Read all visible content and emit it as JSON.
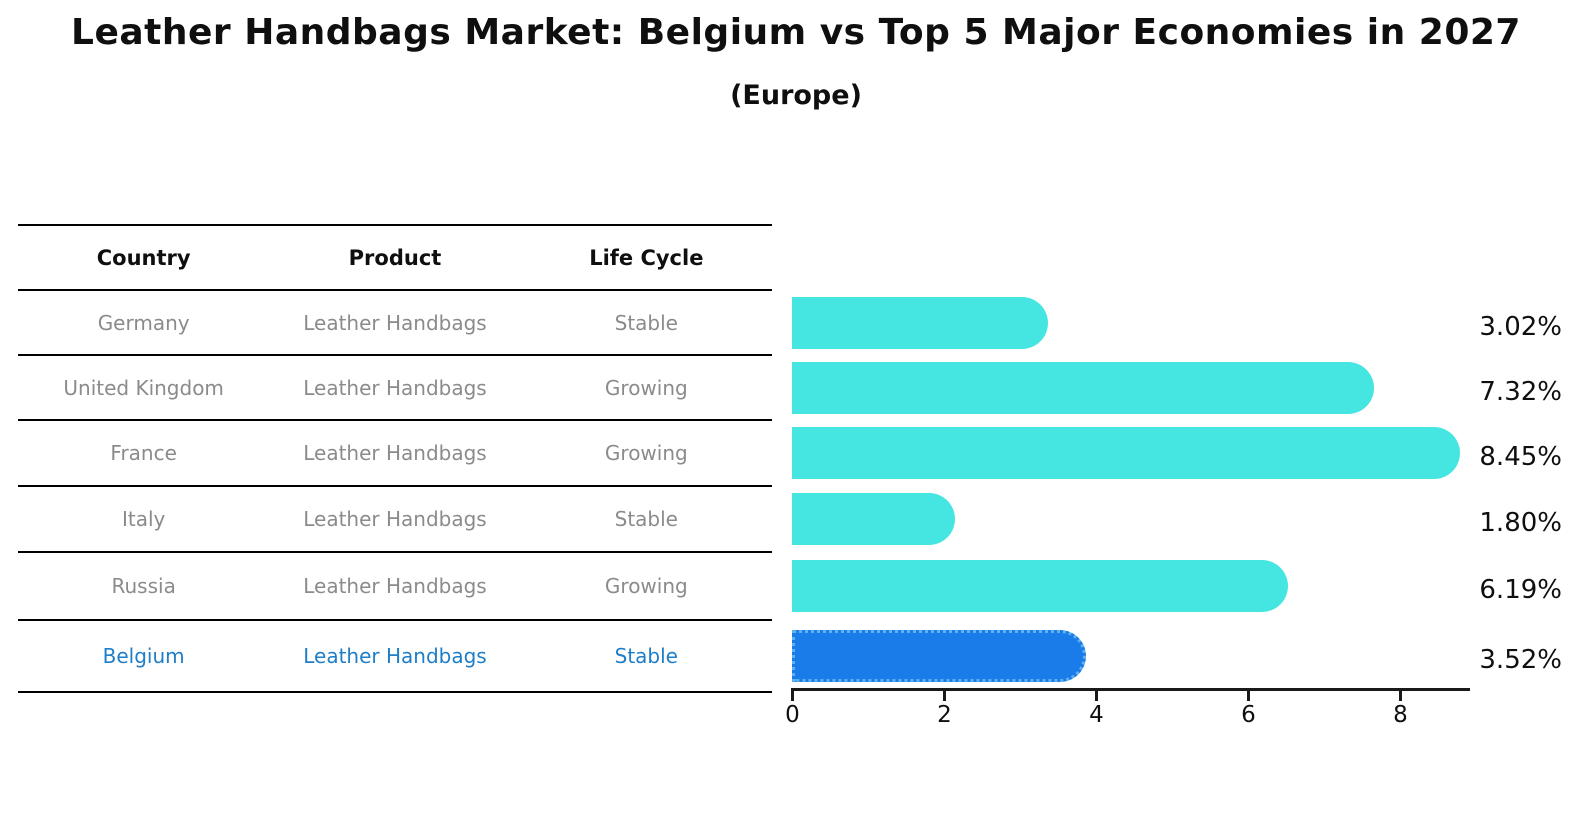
{
  "title": "Leather Handbags Market: Belgium vs Top 5 Major Economies in 2027",
  "subtitle": "(Europe)",
  "table": {
    "headers": [
      "Country",
      "Product",
      "Life Cycle"
    ],
    "rows": [
      {
        "country": "Germany",
        "product": "Leather Handbags",
        "life_cycle": "Stable",
        "highlighted": false
      },
      {
        "country": "United Kingdom",
        "product": "Leather Handbags",
        "life_cycle": "Growing",
        "highlighted": false
      },
      {
        "country": "France",
        "product": "Leather Handbags",
        "life_cycle": "Growing",
        "highlighted": false
      },
      {
        "country": "Italy",
        "product": "Leather Handbags",
        "life_cycle": "Stable",
        "highlighted": false
      },
      {
        "country": "Russia",
        "product": "Leather Handbags",
        "life_cycle": "Growing",
        "highlighted": false
      },
      {
        "country": "Belgium",
        "product": "Leather Handbags",
        "life_cycle": "Stable",
        "highlighted": true
      }
    ]
  },
  "chart_data": {
    "type": "bar",
    "orientation": "horizontal",
    "title": "Leather Handbags Market: Belgium vs Top 5 Major Economies in 2027 (Europe)",
    "categories": [
      "Germany",
      "United Kingdom",
      "France",
      "Italy",
      "Russia",
      "Belgium"
    ],
    "values": [
      3.02,
      7.32,
      8.45,
      1.8,
      6.19,
      3.52
    ],
    "value_labels": [
      "3.02%",
      "7.32%",
      "8.45%",
      "1.80%",
      "6.19%",
      "3.52%"
    ],
    "x_ticks": [
      "0",
      "2",
      "4",
      "6",
      "8"
    ],
    "xlim": [
      0,
      8.9
    ],
    "grid": false,
    "legend": "none",
    "bar_color": "#45e6e1",
    "highlight_bar_color": "#1a7ce8",
    "highlight_index": 5,
    "highlight_edge_style": "dotted"
  },
  "colors": {
    "title_text": "#0f0f0f",
    "table_text": "#8b8b8b",
    "highlight_text": "#1e7ec8",
    "axis": "#1a1a1a"
  }
}
